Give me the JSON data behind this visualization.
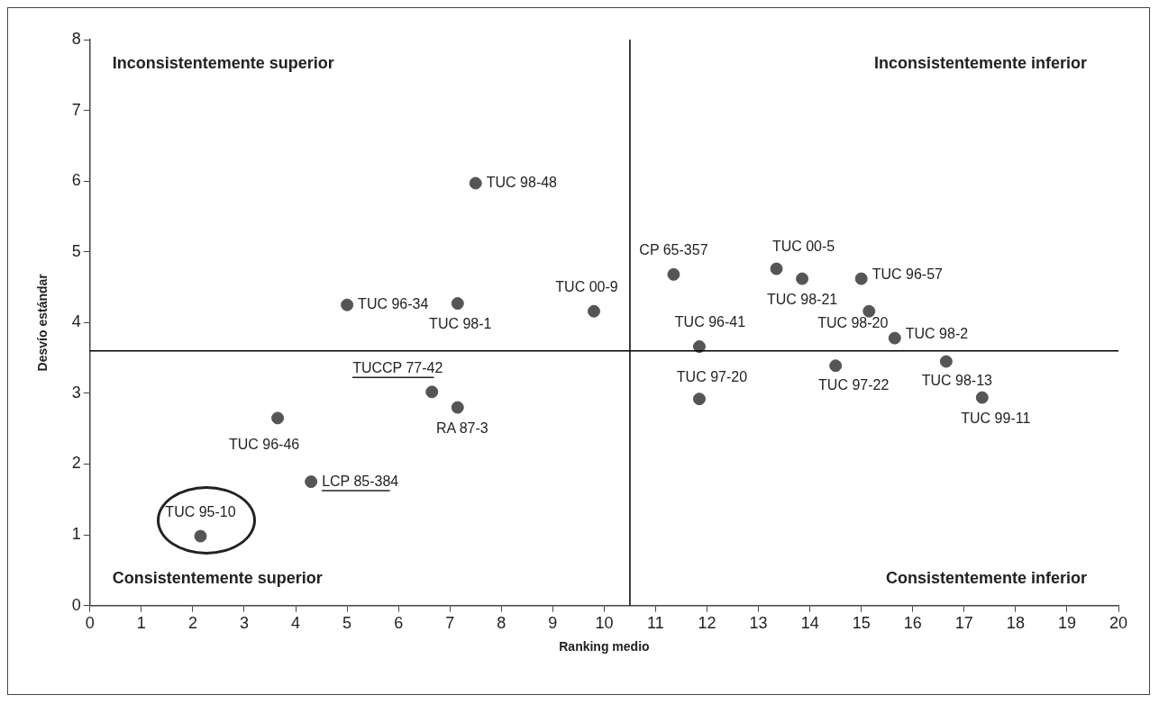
{
  "chart_data": {
    "type": "scatter",
    "xlabel": "Ranking medio",
    "ylabel": "Desvío estándar",
    "x": [
      2.15,
      3.65,
      4.3,
      6.65,
      7.15,
      5.0,
      7.15,
      7.5,
      9.8,
      11.35,
      13.35,
      13.85,
      15.0,
      15.15,
      15.65,
      11.85,
      11.85,
      14.5,
      16.65,
      17.35
    ],
    "series": [
      {
        "color": "#555555",
        "values": [
          0.98,
          2.65,
          1.75,
          3.02,
          2.8,
          4.25,
          4.27,
          5.97,
          4.16,
          4.68,
          4.76,
          4.62,
          4.62,
          4.16,
          3.78,
          3.66,
          2.92,
          3.39,
          3.45,
          2.94
        ]
      }
    ],
    "xlim": [
      0,
      20
    ],
    "xticks": [
      0,
      1,
      2,
      3,
      4,
      5,
      6,
      7,
      8,
      9,
      10,
      11,
      12,
      13,
      14,
      15,
      16,
      17,
      18,
      19,
      20
    ],
    "ylim": [
      0,
      8
    ],
    "yticks": [
      0,
      1,
      2,
      3,
      4,
      5,
      6,
      7,
      8
    ],
    "marker": "circle",
    "grid": false,
    "legend": false,
    "ref_lines": [
      {
        "axis": "x",
        "value": 10.5,
        "color": "#000000"
      },
      {
        "axis": "y",
        "value": 3.6,
        "color": "#000000"
      }
    ],
    "annotations": [
      "Inconsistentemente superior",
      "Inconsistentemente inferior",
      "Consistentemente superior",
      "Consistentemente inferior",
      {
        "text": "TUC 95-10",
        "x": 2.15,
        "y": 0.98
      },
      {
        "text": "TUC 96-46",
        "x": 3.65,
        "y": 2.65
      },
      {
        "text": "LCP 85-384",
        "x": 4.3,
        "y": 1.75
      },
      {
        "text": "TUCCP 77-42",
        "x": 6.65,
        "y": 3.02
      },
      {
        "text": "RA 87-3",
        "x": 7.15,
        "y": 2.8
      },
      {
        "text": "TUC 96-34",
        "x": 5.0,
        "y": 4.25
      },
      {
        "text": "TUC 98-1",
        "x": 7.15,
        "y": 4.27
      },
      {
        "text": "TUC 98-48",
        "x": 7.5,
        "y": 5.97
      },
      {
        "text": "TUC 00-9",
        "x": 9.8,
        "y": 4.16
      },
      {
        "text": "CP 65-357",
        "x": 11.35,
        "y": 4.68
      },
      {
        "text": "TUC 00-5",
        "x": 13.35,
        "y": 4.76
      },
      {
        "text": "TUC 98-21",
        "x": 13.85,
        "y": 4.62
      },
      {
        "text": "TUC 96-57",
        "x": 15.0,
        "y": 4.62
      },
      {
        "text": "TUC 98-20",
        "x": 15.15,
        "y": 4.16
      },
      {
        "text": "TUC 98-2",
        "x": 15.65,
        "y": 3.78
      },
      {
        "text": "TUC 96-41",
        "x": 11.85,
        "y": 3.66
      },
      {
        "text": "TUC 97-20",
        "x": 11.85,
        "y": 2.92
      },
      {
        "text": "TUC 97-22",
        "x": 14.5,
        "y": 3.39
      },
      {
        "text": "TUC 98-13",
        "x": 16.65,
        "y": 3.45
      },
      {
        "text": "TUC 99-11",
        "x": 17.35,
        "y": 2.94
      }
    ]
  }
}
